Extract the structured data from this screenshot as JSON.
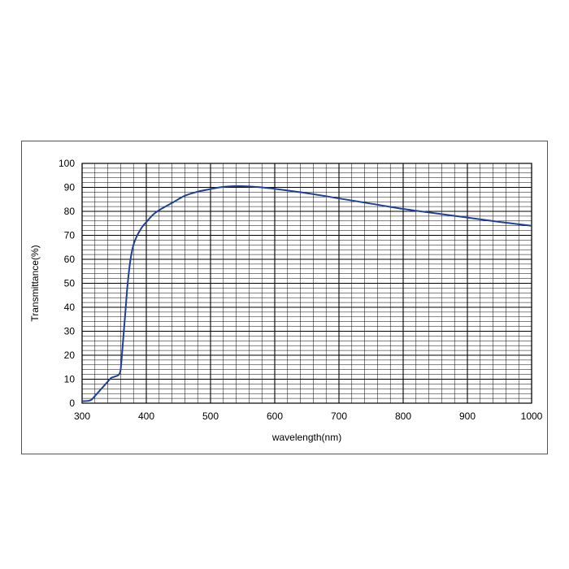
{
  "chart_data": {
    "type": "line",
    "title": "",
    "xlabel": "wavelength(nm)",
    "ylabel": "Transmittance(%)",
    "xlim": [
      300,
      1000
    ],
    "ylim": [
      0,
      100
    ],
    "x_ticks": [
      300,
      400,
      500,
      600,
      700,
      800,
      900,
      1000
    ],
    "y_ticks": [
      0,
      10,
      20,
      30,
      40,
      50,
      60,
      70,
      80,
      90,
      100
    ],
    "grid": true,
    "legend": "none",
    "line_color": "#1f3f99",
    "series": [
      {
        "x": [
          300,
          310,
          315,
          320,
          330,
          340,
          345,
          350,
          355,
          358,
          360,
          362,
          365,
          368,
          370,
          373,
          376,
          380,
          385,
          390,
          395,
          400,
          410,
          420,
          440,
          460,
          480,
          500,
          520,
          540,
          560,
          580,
          600,
          650,
          700,
          750,
          800,
          850,
          900,
          950,
          1000
        ],
        "y": [
          0.8,
          1.0,
          1.5,
          3,
          6,
          9,
          10.5,
          11,
          11.5,
          12.2,
          14,
          20,
          30,
          40,
          47,
          55,
          61,
          66,
          69.5,
          72,
          74,
          75.5,
          78.5,
          80.5,
          83.5,
          86.5,
          88.2,
          89.3,
          90.2,
          90.5,
          90.4,
          90,
          89.4,
          87.6,
          85.4,
          83.2,
          81.0,
          79.2,
          77.4,
          75.6,
          74.0
        ]
      }
    ]
  }
}
